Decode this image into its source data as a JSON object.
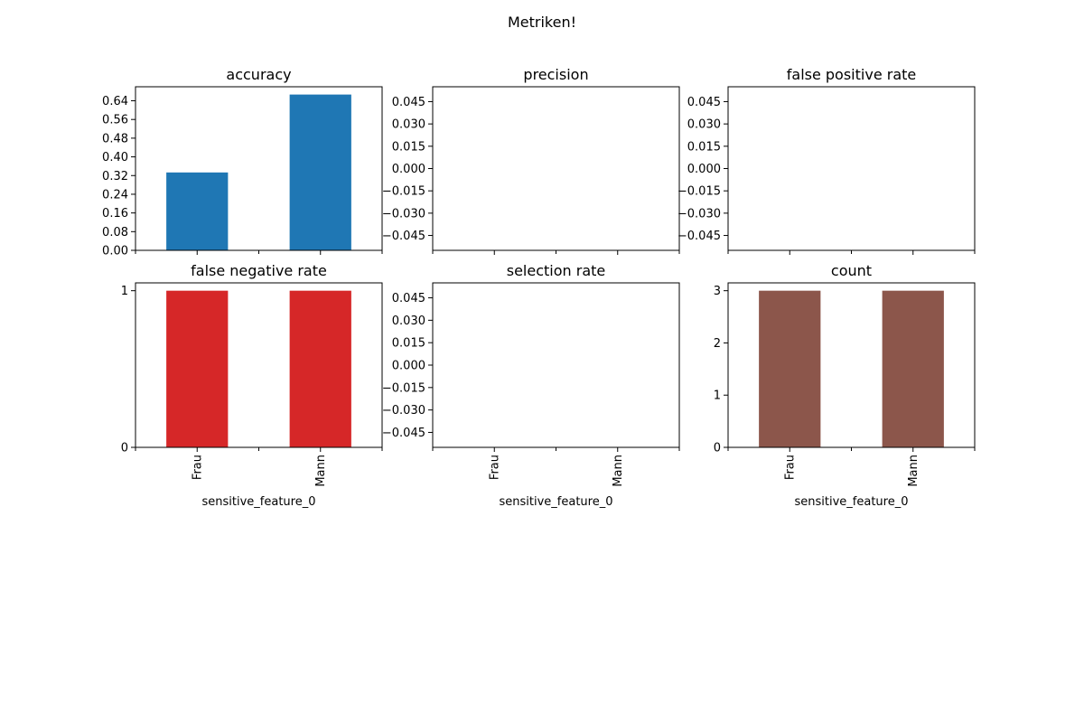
{
  "suptitle": "Metriken!",
  "chart_data": [
    {
      "type": "bar",
      "title": "accuracy",
      "categories": [
        "Frau",
        "Mann"
      ],
      "values": [
        0.3333,
        0.6667
      ],
      "color": "#1f77b4",
      "ylim": [
        0,
        0.7
      ],
      "yticks": [
        0,
        0.08,
        0.16,
        0.24,
        0.32,
        0.4,
        0.48,
        0.56,
        0.64
      ],
      "ytick_labels": [
        "0.00",
        "0.08",
        "0.16",
        "0.24",
        "0.32",
        "0.40",
        "0.48",
        "0.56",
        "0.64"
      ],
      "xlabel": "",
      "show_xticklabels": false
    },
    {
      "type": "bar",
      "title": "precision",
      "categories": [
        "Frau",
        "Mann"
      ],
      "values": [
        0,
        0
      ],
      "color": "#ff7f0e",
      "ylim": [
        -0.055,
        0.055
      ],
      "yticks": [
        -0.045,
        -0.03,
        -0.015,
        0,
        0.015,
        0.03,
        0.045
      ],
      "ytick_labels": [
        "−0.045",
        "−0.030",
        "−0.015",
        "0.000",
        "0.015",
        "0.030",
        "0.045"
      ],
      "xlabel": "",
      "show_xticklabels": false
    },
    {
      "type": "bar",
      "title": "false positive rate",
      "categories": [
        "Frau",
        "Mann"
      ],
      "values": [
        0,
        0
      ],
      "color": "#2ca02c",
      "ylim": [
        -0.055,
        0.055
      ],
      "yticks": [
        -0.045,
        -0.03,
        -0.015,
        0,
        0.015,
        0.03,
        0.045
      ],
      "ytick_labels": [
        "−0.045",
        "−0.030",
        "−0.015",
        "0.000",
        "0.015",
        "0.030",
        "0.045"
      ],
      "xlabel": "",
      "show_xticklabels": false
    },
    {
      "type": "bar",
      "title": "false negative rate",
      "categories": [
        "Frau",
        "Mann"
      ],
      "values": [
        1,
        1
      ],
      "color": "#d62728",
      "ylim": [
        0,
        1.05
      ],
      "yticks": [
        0,
        1
      ],
      "ytick_labels": [
        "0",
        "1"
      ],
      "xlabel": "sensitive_feature_0",
      "show_xticklabels": true
    },
    {
      "type": "bar",
      "title": "selection rate",
      "categories": [
        "Frau",
        "Mann"
      ],
      "values": [
        0,
        0
      ],
      "color": "#9467bd",
      "ylim": [
        -0.055,
        0.055
      ],
      "yticks": [
        -0.045,
        -0.03,
        -0.015,
        0,
        0.015,
        0.03,
        0.045
      ],
      "ytick_labels": [
        "−0.045",
        "−0.030",
        "−0.015",
        "0.000",
        "0.015",
        "0.030",
        "0.045"
      ],
      "xlabel": "sensitive_feature_0",
      "show_xticklabels": true
    },
    {
      "type": "bar",
      "title": "count",
      "categories": [
        "Frau",
        "Mann"
      ],
      "values": [
        3,
        3
      ],
      "color": "#8c564b",
      "ylim": [
        0,
        3.15
      ],
      "yticks": [
        0,
        1,
        2,
        3
      ],
      "ytick_labels": [
        "0",
        "1",
        "2",
        "3"
      ],
      "xlabel": "sensitive_feature_0",
      "show_xticklabels": true
    }
  ]
}
